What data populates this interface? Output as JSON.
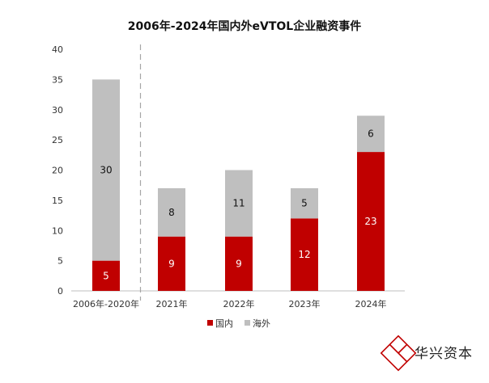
{
  "chart_data": {
    "type": "bar",
    "stacked": true,
    "title": "2006年-2024年国内外eVTOL企业融资事件",
    "xlabel": "",
    "ylabel": "",
    "categories": [
      "2006年-2020年",
      "2021年",
      "2022年",
      "2023年",
      "2024年"
    ],
    "series": [
      {
        "name": "国内",
        "values": [
          5,
          9,
          9,
          12,
          23
        ],
        "color": "#C00000",
        "label_color": "#ffffff"
      },
      {
        "name": "海外",
        "values": [
          30,
          8,
          11,
          5,
          6
        ],
        "color": "#BFBFBF",
        "label_color": "#111111"
      }
    ],
    "ylim": [
      0,
      40
    ],
    "yticks": [
      0,
      5,
      10,
      15,
      20,
      25,
      30,
      35,
      40
    ],
    "grid": false,
    "legend_position": "bottom",
    "separator_after_category": "2006年-2020年"
  },
  "brand": {
    "name": "华兴资本",
    "logo_color": "#C00000"
  }
}
